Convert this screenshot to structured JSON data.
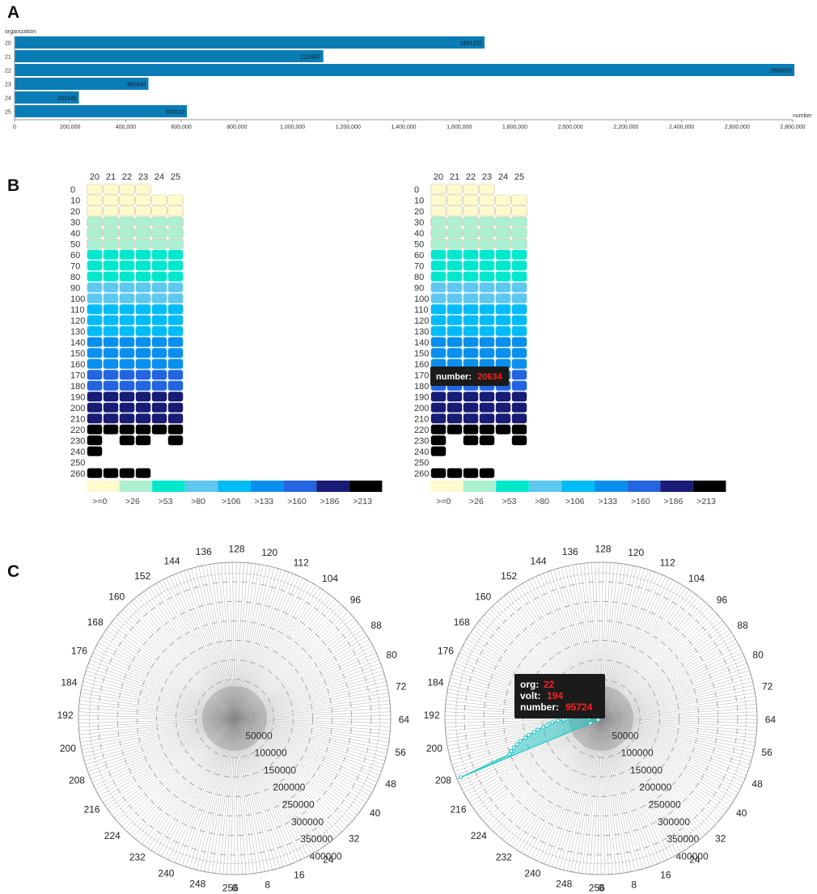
{
  "panels": {
    "a": "A",
    "b": "B",
    "c": "C"
  },
  "colors": {
    "bar": "#0a7cb6",
    "heat": [
      "#fffacd",
      "#aaf0d1",
      "#00e8cc",
      "#5ec8ee",
      "#00bcf6",
      "#0a8fee",
      "#2464e0",
      "#181c74",
      "#000000"
    ],
    "radar": "#1cc6c6"
  },
  "chart_data": [
    {
      "type": "bar",
      "orientation": "horizontal",
      "ylabel": "organization",
      "xlabel": "number",
      "categories": [
        "20",
        "21",
        "22",
        "23",
        "24",
        "25"
      ],
      "values": [
        1691232,
        1110997,
        2806032,
        481642,
        231440,
        620112
      ],
      "value_labels": [
        "1691232",
        "1110997",
        "2806032",
        "481642",
        "231440",
        "620112"
      ],
      "xlim": [
        0,
        2800000
      ],
      "xticks": [
        0,
        200000,
        400000,
        600000,
        800000,
        1000000,
        1200000,
        1400000,
        1600000,
        1800000,
        2000000,
        2200000,
        2400000,
        2600000,
        2800000
      ],
      "xtick_labels": [
        "0",
        "200,000",
        "400,000",
        "600,000",
        "800,000",
        "1,000,000",
        "1,200,000",
        "1,400,000",
        "1,600,000",
        "1,800,000",
        "2,000,000",
        "2,200,000",
        "2,400,000",
        "2,600,000",
        "2,800,000"
      ]
    },
    {
      "type": "heatmap",
      "columns": [
        "20",
        "21",
        "22",
        "23",
        "24",
        "25"
      ],
      "rows": [
        "0",
        "10",
        "20",
        "30",
        "40",
        "50",
        "60",
        "70",
        "80",
        "90",
        "100",
        "110",
        "120",
        "130",
        "140",
        "150",
        "160",
        "170",
        "180",
        "190",
        "200",
        "210",
        "220",
        "230",
        "240",
        "250",
        "260"
      ],
      "cell_bins": [
        [
          0,
          0,
          0,
          0,
          null,
          null
        ],
        [
          0,
          0,
          0,
          0,
          0,
          0
        ],
        [
          0,
          0,
          0,
          0,
          0,
          0
        ],
        [
          1,
          1,
          1,
          1,
          1,
          1
        ],
        [
          1,
          1,
          1,
          1,
          1,
          1
        ],
        [
          1,
          1,
          1,
          1,
          1,
          1
        ],
        [
          2,
          2,
          2,
          2,
          2,
          2
        ],
        [
          2,
          2,
          2,
          2,
          2,
          2
        ],
        [
          2,
          2,
          2,
          2,
          2,
          2
        ],
        [
          3,
          3,
          3,
          3,
          3,
          3
        ],
        [
          3,
          3,
          3,
          3,
          3,
          3
        ],
        [
          4,
          4,
          4,
          4,
          4,
          4
        ],
        [
          4,
          4,
          4,
          4,
          4,
          4
        ],
        [
          4,
          4,
          4,
          4,
          4,
          4
        ],
        [
          5,
          5,
          5,
          5,
          5,
          5
        ],
        [
          5,
          5,
          5,
          5,
          5,
          5
        ],
        [
          5,
          5,
          5,
          5,
          5,
          5
        ],
        [
          6,
          6,
          6,
          6,
          6,
          6
        ],
        [
          6,
          6,
          6,
          6,
          6,
          6
        ],
        [
          7,
          7,
          7,
          7,
          7,
          7
        ],
        [
          7,
          7,
          7,
          7,
          7,
          7
        ],
        [
          7,
          7,
          7,
          7,
          7,
          7
        ],
        [
          8,
          8,
          8,
          8,
          8,
          8
        ],
        [
          8,
          null,
          8,
          8,
          null,
          8
        ],
        [
          8,
          null,
          null,
          null,
          null,
          null
        ],
        [
          null,
          null,
          null,
          null,
          null,
          null
        ],
        [
          8,
          8,
          8,
          8,
          null,
          null
        ]
      ],
      "legend": [
        ">=0",
        ">26",
        ">53",
        ">80",
        ">106",
        ">133",
        ">160",
        ">186",
        ">213"
      ]
    },
    {
      "type": "heatmap",
      "columns": [
        "20",
        "21",
        "22",
        "23",
        "24",
        "25"
      ],
      "rows": [
        "0",
        "10",
        "20",
        "30",
        "40",
        "50",
        "60",
        "70",
        "80",
        "90",
        "100",
        "110",
        "120",
        "130",
        "140",
        "150",
        "160",
        "170",
        "180",
        "190",
        "200",
        "210",
        "220",
        "230",
        "240",
        "250",
        "260"
      ],
      "same_cells_as_previous": true,
      "legend": [
        ">=0",
        ">26",
        ">53",
        ">80",
        ">106",
        ">133",
        ">160",
        ">186",
        ">213"
      ],
      "tooltip": {
        "label": "number:",
        "value": "20634"
      }
    },
    {
      "type": "radar",
      "angle_labels": [
        "0",
        "8",
        "16",
        "24",
        "32",
        "40",
        "48",
        "56",
        "64",
        "72",
        "80",
        "88",
        "96",
        "104",
        "112",
        "120",
        "128",
        "136",
        "144",
        "152",
        "160",
        "168",
        "176",
        "184",
        "192",
        "200",
        "208",
        "216",
        "224",
        "232",
        "240",
        "248",
        "256"
      ],
      "angle_max": 257,
      "radial_ticks": [
        "50000",
        "100000",
        "150000",
        "200000",
        "250000",
        "300000",
        "350000",
        "400000"
      ],
      "rmax": 400000
    },
    {
      "type": "radar",
      "angle_labels": [
        "0",
        "8",
        "16",
        "24",
        "32",
        "40",
        "48",
        "56",
        "64",
        "72",
        "80",
        "88",
        "96",
        "104",
        "112",
        "120",
        "128",
        "136",
        "144",
        "152",
        "160",
        "168",
        "176",
        "184",
        "192",
        "200",
        "208",
        "216",
        "224",
        "232",
        "240",
        "248",
        "256"
      ],
      "angle_max": 257,
      "radial_ticks": [
        "50000",
        "100000",
        "150000",
        "200000",
        "250000",
        "300000",
        "350000",
        "400000"
      ],
      "rmax": 400000,
      "series": [
        {
          "org": "22",
          "points": [
            [
              190,
              10000
            ],
            [
              191,
              30000
            ],
            [
              192,
              80000
            ],
            [
              193,
              90000
            ],
            [
              194,
              95724
            ],
            [
              195,
              110000
            ],
            [
              196,
              125000
            ],
            [
              197,
              135000
            ],
            [
              198,
              140000
            ],
            [
              199,
              150000
            ],
            [
              200,
              165000
            ],
            [
              201,
              175000
            ],
            [
              202,
              190000
            ],
            [
              203,
              200000
            ],
            [
              204,
              215000
            ],
            [
              205,
              225000
            ],
            [
              206,
              235000
            ],
            [
              207,
              245000
            ],
            [
              208,
              252000
            ],
            [
              209,
              390000
            ],
            [
              210,
              30000
            ],
            [
              211,
              8000
            ]
          ]
        }
      ],
      "tooltip": {
        "org_label": "org:",
        "org_value": "22",
        "volt_label": "volt:",
        "volt_value": "194",
        "number_label": "number:",
        "number_value": "95724"
      }
    }
  ]
}
